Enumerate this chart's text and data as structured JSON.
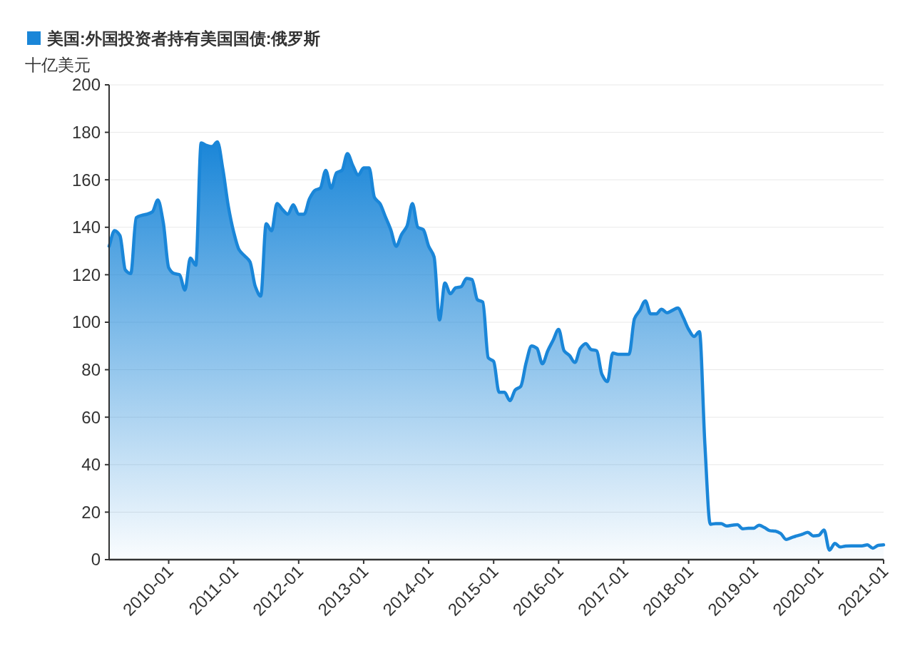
{
  "chart_data": {
    "type": "area",
    "ylabel": "十亿美元",
    "legend": "top left",
    "grid": "y",
    "xlim": [
      "2009-02",
      "2021-01"
    ],
    "xticks": [
      "2010-01",
      "2011-01",
      "2012-01",
      "2013-01",
      "2014-01",
      "2015-01",
      "2016-01",
      "2017-01",
      "2018-01",
      "2019-01",
      "2020-01",
      "2021-01"
    ],
    "ylim": [
      0,
      200
    ],
    "yticks": [
      0,
      20,
      40,
      60,
      80,
      100,
      120,
      140,
      160,
      180,
      200
    ],
    "x": [
      "2009-02",
      "2009-03",
      "2009-04",
      "2009-05",
      "2009-06",
      "2009-07",
      "2009-08",
      "2009-09",
      "2009-10",
      "2009-11",
      "2009-12",
      "2010-01",
      "2010-02",
      "2010-03",
      "2010-04",
      "2010-05",
      "2010-06",
      "2010-07",
      "2010-08",
      "2010-09",
      "2010-10",
      "2010-11",
      "2010-12",
      "2011-01",
      "2011-02",
      "2011-03",
      "2011-04",
      "2011-05",
      "2011-06",
      "2011-07",
      "2011-08",
      "2011-09",
      "2011-10",
      "2011-11",
      "2011-12",
      "2012-01",
      "2012-02",
      "2012-03",
      "2012-04",
      "2012-05",
      "2012-06",
      "2012-07",
      "2012-08",
      "2012-09",
      "2012-10",
      "2012-11",
      "2012-12",
      "2013-01",
      "2013-02",
      "2013-03",
      "2013-04",
      "2013-05",
      "2013-06",
      "2013-07",
      "2013-08",
      "2013-09",
      "2013-10",
      "2013-11",
      "2013-12",
      "2014-01",
      "2014-02",
      "2014-03",
      "2014-04",
      "2014-05",
      "2014-06",
      "2014-07",
      "2014-08",
      "2014-09",
      "2014-10",
      "2014-11",
      "2014-12",
      "2015-01",
      "2015-02",
      "2015-03",
      "2015-04",
      "2015-05",
      "2015-06",
      "2015-07",
      "2015-08",
      "2015-09",
      "2015-10",
      "2015-11",
      "2015-12",
      "2016-01",
      "2016-02",
      "2016-03",
      "2016-04",
      "2016-05",
      "2016-06",
      "2016-07",
      "2016-08",
      "2016-09",
      "2016-10",
      "2016-11",
      "2016-12",
      "2017-01",
      "2017-02",
      "2017-03",
      "2017-04",
      "2017-05",
      "2017-06",
      "2017-07",
      "2017-08",
      "2017-09",
      "2017-10",
      "2017-11",
      "2017-12",
      "2018-01",
      "2018-02",
      "2018-03",
      "2018-04",
      "2018-05",
      "2018-06",
      "2018-07",
      "2018-08",
      "2018-09",
      "2018-10",
      "2018-11",
      "2018-12",
      "2019-01",
      "2019-02",
      "2019-03",
      "2019-04",
      "2019-05",
      "2019-06",
      "2019-07",
      "2019-08",
      "2019-09",
      "2019-10",
      "2019-11",
      "2019-12",
      "2020-01",
      "2020-02",
      "2020-03",
      "2020-04",
      "2020-05",
      "2020-06",
      "2020-07",
      "2020-08",
      "2020-09",
      "2020-10",
      "2020-11",
      "2020-12",
      "2021-01"
    ],
    "series": [
      {
        "name": "美国:外国投资者持有美国国债:俄罗斯",
        "color": "#1a86d8",
        "values": [
          132,
          138.6,
          136.5,
          122,
          120.5,
          144,
          145,
          145.5,
          146.5,
          151.5,
          142,
          123,
          120.5,
          120,
          113.5,
          127,
          124,
          175.5,
          174.5,
          174,
          176,
          164.5,
          149,
          138,
          130.5,
          128,
          125.5,
          115,
          111,
          141.5,
          138.5,
          150,
          147.5,
          145.5,
          149.5,
          145.5,
          145.5,
          152,
          155.5,
          156.5,
          164,
          156.5,
          163,
          164,
          171,
          166,
          162,
          165,
          165,
          152.5,
          150,
          144.5,
          139,
          132,
          137,
          140.5,
          150,
          140,
          139,
          132,
          127.5,
          101,
          116.5,
          112,
          114.5,
          115,
          118.5,
          118,
          109.5,
          108.5,
          85,
          83.5,
          70.5,
          70.5,
          67,
          71.5,
          73,
          83,
          90,
          89,
          82.5,
          88,
          92.5,
          97,
          88,
          86,
          83,
          89,
          91,
          88.5,
          88,
          78,
          75,
          87,
          86.5,
          86.5,
          86.5,
          101.5,
          105,
          109,
          103.5,
          103.5,
          105.5,
          104,
          105,
          106,
          102,
          97,
          94,
          96,
          48.7,
          14.9,
          15.2,
          15.2,
          14.2,
          14.5,
          14.7,
          13,
          13.2,
          13.2,
          14.5,
          13.5,
          12.2,
          12,
          11,
          8.5,
          9.3,
          10,
          10.7,
          11.5,
          10,
          10.2,
          12.5,
          4,
          6.8,
          5.3,
          5.7,
          5.8,
          5.8,
          5.8,
          6.2,
          4.8,
          6,
          6.2
        ]
      }
    ]
  }
}
